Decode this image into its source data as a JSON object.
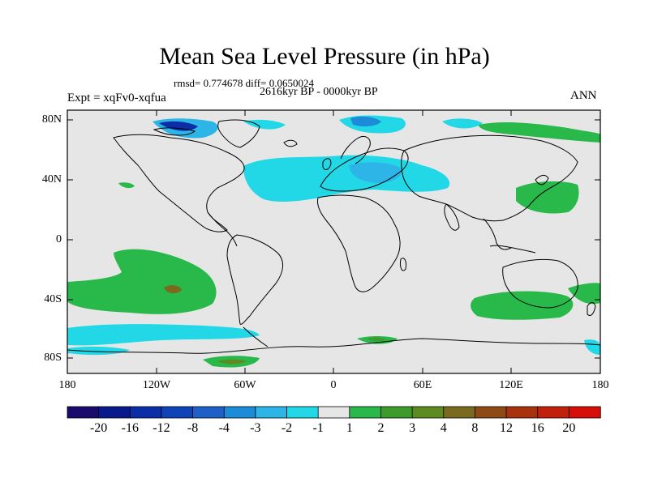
{
  "title": "Mean Sea Level Pressure (in hPa)",
  "stats": {
    "rmsd_diff": "rmsd= 0.774678 diff= 0.0650024"
  },
  "period": "2616kyr BP - 0000kyr BP",
  "experiment": "Expt = xqFv0-xqfua",
  "season": "ANN",
  "axes": {
    "lat_labels": [
      "80N",
      "40N",
      "0",
      "40S",
      "80S"
    ],
    "lon_labels": [
      "180",
      "120W",
      "60W",
      "0",
      "60E",
      "120E",
      "180"
    ]
  },
  "colorbar": {
    "labels": [
      "-20",
      "-16",
      "-12",
      "-8",
      "-4",
      "-3",
      "-2",
      "-1",
      "1",
      "2",
      "3",
      "4",
      "8",
      "12",
      "16",
      "20"
    ],
    "colors": [
      "#1a0a6e",
      "#0a1a8c",
      "#0c2da8",
      "#1043b8",
      "#1f5fc8",
      "#1c8bd8",
      "#2cb5e6",
      "#22d8e6",
      "#e6e6e6",
      "#29b84a",
      "#3d9b2c",
      "#5e8a22",
      "#7a6a20",
      "#8e4a14",
      "#a8320e",
      "#c0200c",
      "#d60e0a"
    ]
  },
  "colors": {
    "land_ocean_neutral": "#e6e6e6",
    "coast": "#000000",
    "neg_dark": "#0c2da8",
    "neg_mid": "#1c8bd8",
    "neg_light": "#22d8e6",
    "pos_light": "#29b84a",
    "pos_mid": "#3d9b2c",
    "pos_dark": "#7a6a20"
  }
}
